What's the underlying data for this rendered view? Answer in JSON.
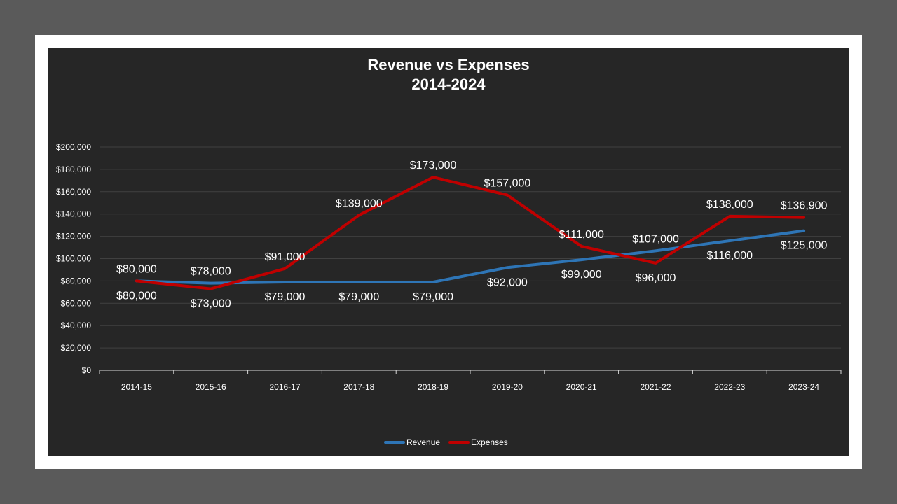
{
  "colors": {
    "background": "#5a5a5a",
    "frame": "#ffffff",
    "plot_background": "#262626",
    "revenue": "#2e75b6",
    "expenses": "#c00000",
    "gridline": "#404040",
    "text": "#ffffff"
  },
  "chart_data": {
    "type": "line",
    "title": "Revenue vs Expenses",
    "subtitle": "2014-2024",
    "xlabel": "",
    "ylabel": "",
    "ylim": [
      0,
      200000
    ],
    "y_ticks": [
      "$0",
      "$20,000",
      "$40,000",
      "$60,000",
      "$80,000",
      "$100,000",
      "$120,000",
      "$140,000",
      "$160,000",
      "$180,000",
      "$200,000"
    ],
    "categories": [
      "2014-15",
      "2015-16",
      "2016-17",
      "2017-18",
      "2018-19",
      "2019-20",
      "2020-21",
      "2021-22",
      "2022-23",
      "2023-24"
    ],
    "grid": true,
    "legend_position": "bottom",
    "series": [
      {
        "name": "Revenue",
        "color": "#2e75b6",
        "values": [
          80000,
          78000,
          79000,
          79000,
          79000,
          92000,
          99000,
          107000,
          116000,
          125000
        ],
        "labels": [
          "$80,000",
          "$78,000",
          "$79,000",
          "$79,000",
          "$79,000",
          "$92,000",
          "$99,000",
          "$107,000",
          "$116,000",
          "$125,000"
        ]
      },
      {
        "name": "Expenses",
        "color": "#c00000",
        "values": [
          80000,
          73000,
          91000,
          139000,
          173000,
          157000,
          111000,
          96000,
          138000,
          136900
        ],
        "labels": [
          "$80,000",
          "$73,000",
          "$91,000",
          "$139,000",
          "$173,000",
          "$157,000",
          "$111,000",
          "$96,000",
          "$138,000",
          "$136,900"
        ]
      }
    ]
  }
}
